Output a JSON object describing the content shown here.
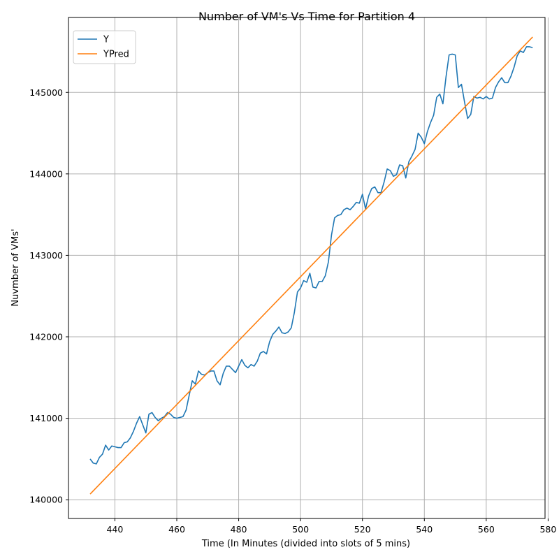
{
  "chart_data": {
    "type": "line",
    "title": "Number of VM's Vs Time for Partition 4",
    "xlabel": "Time (In Minutes (divided into slots of 5 mins)",
    "ylabel": "Nuvmber of VMs'",
    "xlim": [
      425,
      579
    ],
    "ylim": [
      139770,
      145920
    ],
    "xticks": [
      440,
      460,
      480,
      500,
      520,
      540,
      560,
      580
    ],
    "yticks": [
      140000,
      141000,
      142000,
      143000,
      144000,
      145000
    ],
    "grid": true,
    "legend": "top-left",
    "series": [
      {
        "name": "Y",
        "color": "#1f77b4",
        "x": [
          432,
          433,
          434,
          435,
          436,
          437,
          438,
          439,
          440,
          441,
          442,
          443,
          444,
          445,
          446,
          447,
          448,
          449,
          450,
          451,
          452,
          453,
          454,
          455,
          456,
          457,
          458,
          459,
          460,
          461,
          462,
          463,
          464,
          465,
          466,
          467,
          468,
          469,
          470,
          471,
          472,
          473,
          474,
          475,
          476,
          477,
          478,
          479,
          480,
          481,
          482,
          483,
          484,
          485,
          486,
          487,
          488,
          489,
          490,
          491,
          492,
          493,
          494,
          495,
          496,
          497,
          498,
          499,
          500,
          501,
          502,
          503,
          504,
          505,
          506,
          507,
          508,
          509,
          510,
          511,
          512,
          513,
          514,
          515,
          516,
          517,
          518,
          519,
          520,
          521,
          522,
          523,
          524,
          525,
          526,
          527,
          528,
          529,
          530,
          531,
          532,
          533,
          534,
          535,
          536,
          537,
          538,
          539,
          540,
          541,
          542,
          543,
          544,
          545,
          546,
          547,
          548,
          549,
          550,
          551,
          552,
          553,
          554,
          555,
          556,
          557,
          558,
          559,
          560,
          561,
          562,
          563,
          564,
          565,
          566,
          567,
          568,
          569,
          570,
          571,
          572,
          573,
          574,
          575
        ],
        "values": [
          140500,
          140450,
          140440,
          140520,
          140560,
          140670,
          140610,
          140660,
          140650,
          140640,
          140640,
          140700,
          140710,
          140760,
          140840,
          140940,
          141020,
          140920,
          140820,
          141050,
          141070,
          141010,
          140970,
          141000,
          141020,
          141070,
          141050,
          141010,
          141000,
          141010,
          141020,
          141100,
          141280,
          141460,
          141420,
          141580,
          141540,
          141530,
          141560,
          141580,
          141580,
          141460,
          141410,
          141550,
          141640,
          141640,
          141600,
          141560,
          141640,
          141720,
          141650,
          141620,
          141660,
          141640,
          141700,
          141800,
          141820,
          141790,
          141940,
          142030,
          142070,
          142120,
          142050,
          142040,
          142060,
          142110,
          142300,
          142550,
          142600,
          142690,
          142670,
          142780,
          142610,
          142600,
          142680,
          142680,
          142750,
          142920,
          143250,
          143460,
          143490,
          143500,
          143560,
          143580,
          143560,
          143600,
          143650,
          143640,
          143750,
          143570,
          143730,
          143820,
          143840,
          143770,
          143770,
          143900,
          144060,
          144040,
          143970,
          143990,
          144110,
          144100,
          143950,
          144150,
          144220,
          144300,
          144500,
          144450,
          144370,
          144520,
          144630,
          144720,
          144940,
          144980,
          144860,
          145190,
          145460,
          145470,
          145460,
          145060,
          145100,
          144880,
          144680,
          144730,
          144950,
          144930,
          144940,
          144920,
          144950,
          144920,
          144930,
          145060,
          145130,
          145180,
          145120,
          145120,
          145200,
          145310,
          145450,
          145510,
          145490,
          145560,
          145560,
          145550
        ]
      },
      {
        "name": "YPred",
        "color": "#ff7f0e",
        "x": [
          432,
          575
        ],
        "values": [
          140070,
          145680
        ]
      }
    ]
  }
}
